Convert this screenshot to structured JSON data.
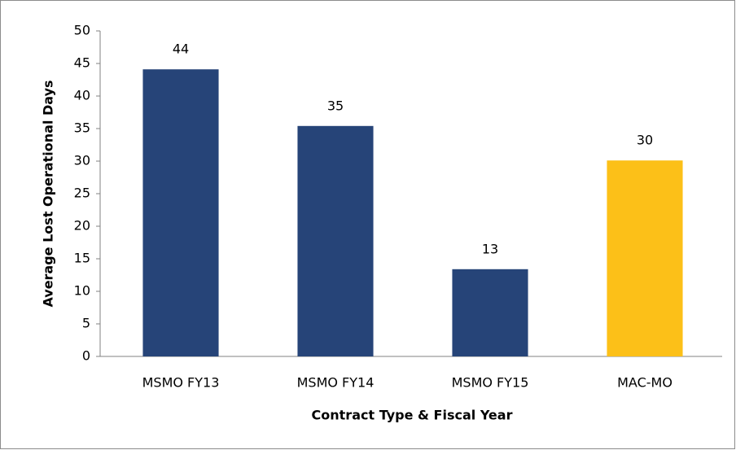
{
  "chart_data": {
    "type": "bar",
    "categories": [
      "MSMO FY13",
      "MSMO FY14",
      "MSMO FY15",
      "MAC-MO"
    ],
    "values": [
      44.1,
      35.4,
      13.4,
      30.1
    ],
    "value_labels": [
      "44",
      "35",
      "13",
      "30"
    ],
    "colors": [
      "#264478",
      "#264478",
      "#264478",
      "#fcc018"
    ],
    "x_label": "Contract Type & Fiscal Year",
    "y_label": "Average Lost Operational Days",
    "ylim": [
      0,
      50
    ],
    "yticks": [
      0,
      5,
      10,
      15,
      20,
      25,
      30,
      35,
      40,
      45,
      50
    ]
  }
}
